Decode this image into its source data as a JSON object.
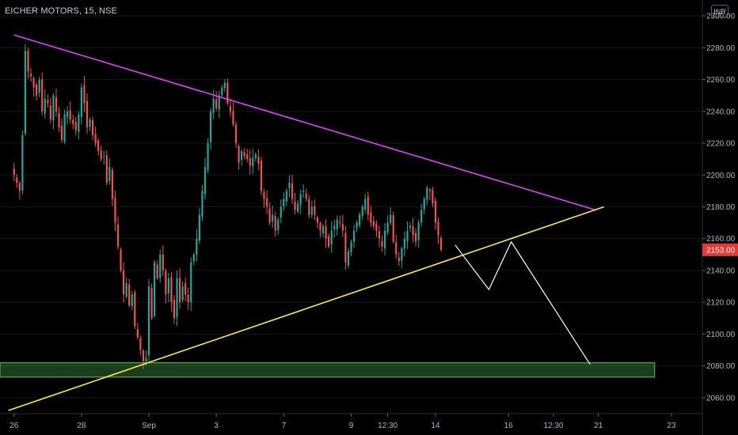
{
  "header": {
    "symbol": "EICHER MOTORS, 15, NSE",
    "currency": "INR"
  },
  "colors": {
    "up": "#26a69a",
    "down": "#ef5350",
    "resistance": "#e040fb",
    "support": "#ffeb3b",
    "projection": "#ffffff",
    "zone": "#4caf50",
    "price_tag": "#e53935"
  },
  "chart_data": {
    "type": "candlestick",
    "title": "EICHER MOTORS, 15, NSE",
    "ylim": [
      2050,
      2310
    ],
    "y_ticks": [
      2060,
      2080,
      2100,
      2120,
      2140,
      2160,
      2180,
      2200,
      2220,
      2240,
      2260,
      2280,
      2300
    ],
    "y_tick_labels": [
      "2060.00",
      "2080.00",
      "2100.00",
      "2120.00",
      "2140.00",
      "2160.00",
      "2180.00",
      "2200.00",
      "2220.00",
      "2240.00",
      "2260.00",
      "2280.00",
      "2300.00"
    ],
    "x_ticks": [
      {
        "label": "26",
        "index": 0
      },
      {
        "label": "28",
        "index": 24
      },
      {
        "label": "Sep",
        "index": 48
      },
      {
        "label": "3",
        "index": 72
      },
      {
        "label": "7",
        "index": 96
      },
      {
        "label": "9",
        "index": 120
      },
      {
        "label": "12:30",
        "index": 133
      },
      {
        "label": "14",
        "index": 150
      },
      {
        "label": "16",
        "index": 176
      },
      {
        "label": "12:30",
        "index": 192
      },
      {
        "label": "21",
        "index": 208
      },
      {
        "label": "23",
        "index": 234
      }
    ],
    "x_range": [
      -5,
      245
    ],
    "last_price": 2153.0,
    "last_price_label": "2153.00",
    "closes": [
      2200,
      2195,
      2190,
      2225,
      2278,
      2265,
      2262,
      2255,
      2250,
      2260,
      2240,
      2248,
      2245,
      2235,
      2250,
      2240,
      2230,
      2222,
      2238,
      2240,
      2235,
      2232,
      2228,
      2238,
      2255,
      2245,
      2230,
      2235,
      2225,
      2220,
      2215,
      2210,
      2212,
      2195,
      2205,
      2185,
      2170,
      2155,
      2140,
      2125,
      2132,
      2118,
      2125,
      2105,
      2098,
      2090,
      2083,
      2085,
      2130,
      2110,
      2145,
      2135,
      2150,
      2140,
      2125,
      2135,
      2120,
      2110,
      2135,
      2120,
      2130,
      2125,
      2120,
      2145,
      2150,
      2160,
      2175,
      2190,
      2205,
      2220,
      2240,
      2248,
      2242,
      2250,
      2255,
      2258,
      2245,
      2240,
      2232,
      2220,
      2208,
      2215,
      2212,
      2210,
      2206,
      2211,
      2213,
      2207,
      2190,
      2185,
      2180,
      2170,
      2175,
      2165,
      2172,
      2180,
      2185,
      2190,
      2195,
      2185,
      2178,
      2182,
      2188,
      2190,
      2185,
      2175,
      2180,
      2175,
      2170,
      2165,
      2168,
      2160,
      2155,
      2165,
      2168,
      2172,
      2170,
      2165,
      2145,
      2152,
      2158,
      2165,
      2170,
      2175,
      2180,
      2185,
      2175,
      2170,
      2168,
      2165,
      2160,
      2155,
      2165,
      2170,
      2175,
      2158,
      2150,
      2146,
      2154,
      2160,
      2165,
      2168,
      2162,
      2158,
      2170,
      2178,
      2185,
      2192,
      2190,
      2182,
      2170,
      2162,
      2153
    ],
    "drawings": {
      "resistance_line": {
        "from": {
          "index": 0,
          "price": 2288
        },
        "to": {
          "index": 207,
          "price": 2178
        }
      },
      "support_line": {
        "from": {
          "index": -2,
          "price": 2052
        },
        "to": {
          "index": 210,
          "price": 2180
        }
      },
      "support_zone": {
        "from_index": -5,
        "to_index": 228,
        "top": 2082,
        "bottom": 2073
      },
      "projection_path": [
        {
          "index": 157,
          "price": 2156
        },
        {
          "index": 169,
          "price": 2128
        },
        {
          "index": 177,
          "price": 2158
        },
        {
          "index": 205,
          "price": 2081
        }
      ]
    }
  }
}
